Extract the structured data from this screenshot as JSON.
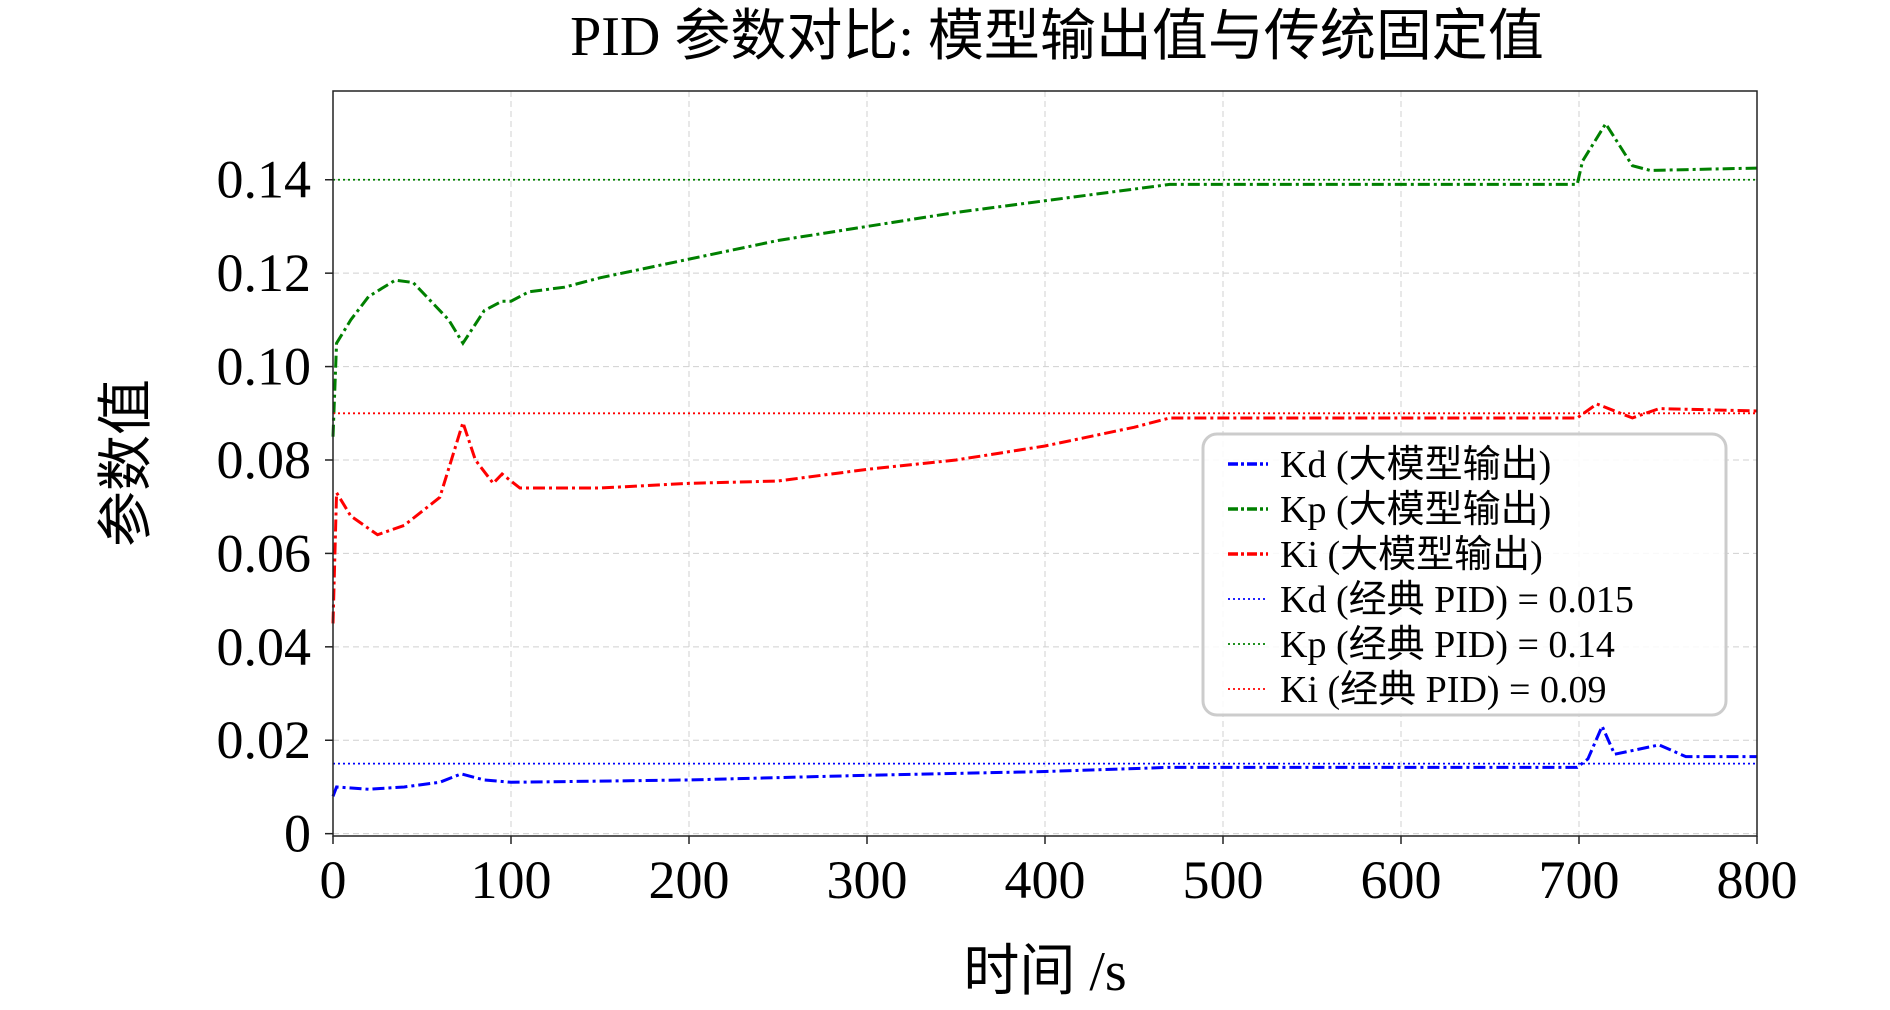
{
  "chart_data": {
    "type": "line",
    "title": "PID 参数对比: 模型输出值与传统固定值",
    "xlabel": "时间 /s",
    "ylabel": "参数值",
    "xlim": [
      0,
      800
    ],
    "ylim": [
      -0.0005,
      0.159
    ],
    "xticks": [
      0,
      100,
      200,
      300,
      400,
      500,
      600,
      700,
      800
    ],
    "xtick_labels": [
      "0",
      "100",
      "200",
      "300",
      "400",
      "500",
      "600",
      "700",
      "800"
    ],
    "yticks": [
      0,
      0.02,
      0.04,
      0.06,
      0.08,
      0.1,
      0.12,
      0.14
    ],
    "ytick_labels": [
      "0",
      "0.02",
      "0.04",
      "0.06",
      "0.08",
      "0.10",
      "0.12",
      "0.14"
    ],
    "grid": true,
    "legend_position": "center-right",
    "series": [
      {
        "name": "Kd (大模型输出)",
        "color": "#0000ff",
        "style": "dashdot",
        "x": [
          0,
          2,
          20,
          40,
          60,
          72,
          85,
          100,
          200,
          300,
          400,
          470,
          699,
          705,
          713,
          720,
          745,
          760,
          800
        ],
        "y": [
          0.008,
          0.01,
          0.0095,
          0.01,
          0.011,
          0.0128,
          0.0115,
          0.011,
          0.0115,
          0.0125,
          0.0133,
          0.0142,
          0.0142,
          0.016,
          0.023,
          0.017,
          0.019,
          0.0165,
          0.0165
        ]
      },
      {
        "name": "Kp (大模型输出)",
        "color": "#008000",
        "style": "dashdot",
        "x": [
          0,
          2,
          10,
          20,
          35,
          45,
          55,
          65,
          73,
          85,
          95,
          100,
          110,
          130,
          150,
          200,
          250,
          300,
          350,
          400,
          450,
          470,
          500,
          600,
          699,
          702,
          715,
          730,
          740,
          800
        ],
        "y": [
          0.085,
          0.105,
          0.11,
          0.115,
          0.1185,
          0.118,
          0.114,
          0.11,
          0.105,
          0.112,
          0.114,
          0.114,
          0.116,
          0.117,
          0.119,
          0.123,
          0.127,
          0.13,
          0.133,
          0.1355,
          0.138,
          0.139,
          0.139,
          0.139,
          0.139,
          0.144,
          0.152,
          0.143,
          0.142,
          0.1425
        ]
      },
      {
        "name": "Ki (大模型输出)",
        "color": "#ff0000",
        "style": "dashdot",
        "x": [
          0,
          2,
          10,
          25,
          40,
          60,
          73,
          80,
          90,
          95,
          105,
          150,
          200,
          250,
          300,
          350,
          400,
          450,
          470,
          600,
          699,
          710,
          730,
          745,
          800
        ],
        "y": [
          0.045,
          0.073,
          0.068,
          0.064,
          0.066,
          0.072,
          0.088,
          0.08,
          0.075,
          0.077,
          0.074,
          0.074,
          0.075,
          0.0755,
          0.078,
          0.08,
          0.083,
          0.087,
          0.089,
          0.089,
          0.089,
          0.092,
          0.089,
          0.091,
          0.0905
        ]
      },
      {
        "name": "Kd (经典 PID) = 0.015",
        "color": "#0000ff",
        "style": "dotted",
        "x": [
          0,
          800
        ],
        "y": [
          0.015,
          0.015
        ]
      },
      {
        "name": "Kp (经典 PID) = 0.14",
        "color": "#008000",
        "style": "dotted",
        "x": [
          0,
          800
        ],
        "y": [
          0.14,
          0.14
        ]
      },
      {
        "name": "Ki (经典 PID) = 0.09",
        "color": "#ff0000",
        "style": "dotted",
        "x": [
          0,
          800
        ],
        "y": [
          0.09,
          0.09
        ]
      }
    ]
  }
}
